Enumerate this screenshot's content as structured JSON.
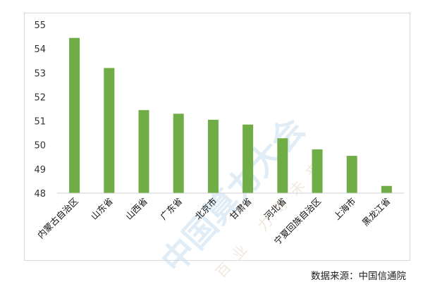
{
  "chart_data": {
    "type": "bar",
    "title": "",
    "xlabel": "",
    "ylabel": "",
    "ylim": [
      48,
      55
    ],
    "yticks": [
      48,
      49,
      50,
      51,
      52,
      53,
      54,
      55
    ],
    "grid": false,
    "color": "#70AD47",
    "categories": [
      "内蒙古自治区",
      "山东省",
      "山西省",
      "广东省",
      "北京市",
      "甘肃省",
      "河北省",
      "宁夏回族自治区",
      "上海市",
      "黑龙江省"
    ],
    "values": [
      54.45,
      53.2,
      51.45,
      51.3,
      51.05,
      50.85,
      50.28,
      49.82,
      49.55,
      48.3
    ]
  },
  "source_note": "数据来源：中国信通院",
  "watermark": {
    "text": "中国算力大会",
    "motto": "百业 力导未来",
    "color": "#c9dff0"
  }
}
